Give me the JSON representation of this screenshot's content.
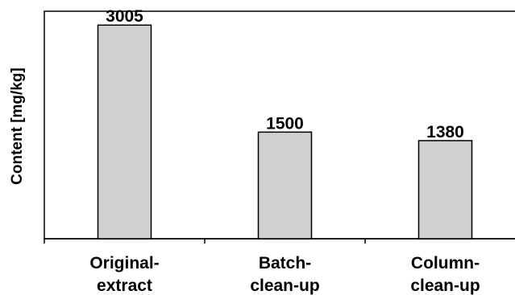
{
  "chart_data": {
    "type": "bar",
    "title": "",
    "xlabel": "",
    "ylabel": "Content [mg/kg]",
    "categories": [
      [
        "Original-",
        "extract"
      ],
      [
        "Batch-",
        "clean-up"
      ],
      [
        "Column-",
        "clean-up"
      ]
    ],
    "values": [
      3005,
      1500,
      1380
    ],
    "value_labels": [
      "3005",
      "1500",
      "1380"
    ],
    "ylim": [
      0,
      3200
    ],
    "grid": false,
    "legend": "none",
    "colors": {
      "bar_fill": "#d0d0d0",
      "bar_stroke": "#000000",
      "axis": "#000000",
      "background": "#ffffff"
    }
  }
}
